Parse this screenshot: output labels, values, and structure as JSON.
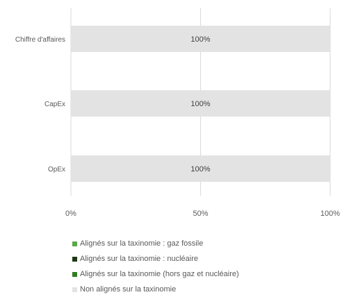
{
  "chart_data": {
    "type": "bar",
    "orientation": "horizontal",
    "stacked": true,
    "categories": [
      "Chiffre d'affaires",
      "CapEx",
      "OpEx"
    ],
    "series": [
      {
        "name": "Alignés sur la taxinomie : gaz fossile",
        "values": [
          0,
          0,
          0
        ],
        "color": "#5aa845"
      },
      {
        "name": "Alignés sur la taxinomie : nucléaire",
        "values": [
          0,
          0,
          0
        ],
        "color": "#1e3a12"
      },
      {
        "name": "Alignés sur la taxinomie (hors gaz et nucléaire)",
        "values": [
          0,
          0,
          0
        ],
        "color": "#2f7d1f"
      },
      {
        "name": "Non alignés sur la taxinomie",
        "values": [
          100,
          100,
          100
        ],
        "color": "#e3e3e3"
      }
    ],
    "data_labels": [
      "100%",
      "100%",
      "100%"
    ],
    "xlim": [
      0,
      100
    ],
    "xticks": [
      "0%",
      "50%",
      "100%"
    ],
    "grid": true,
    "legend_position": "bottom"
  }
}
